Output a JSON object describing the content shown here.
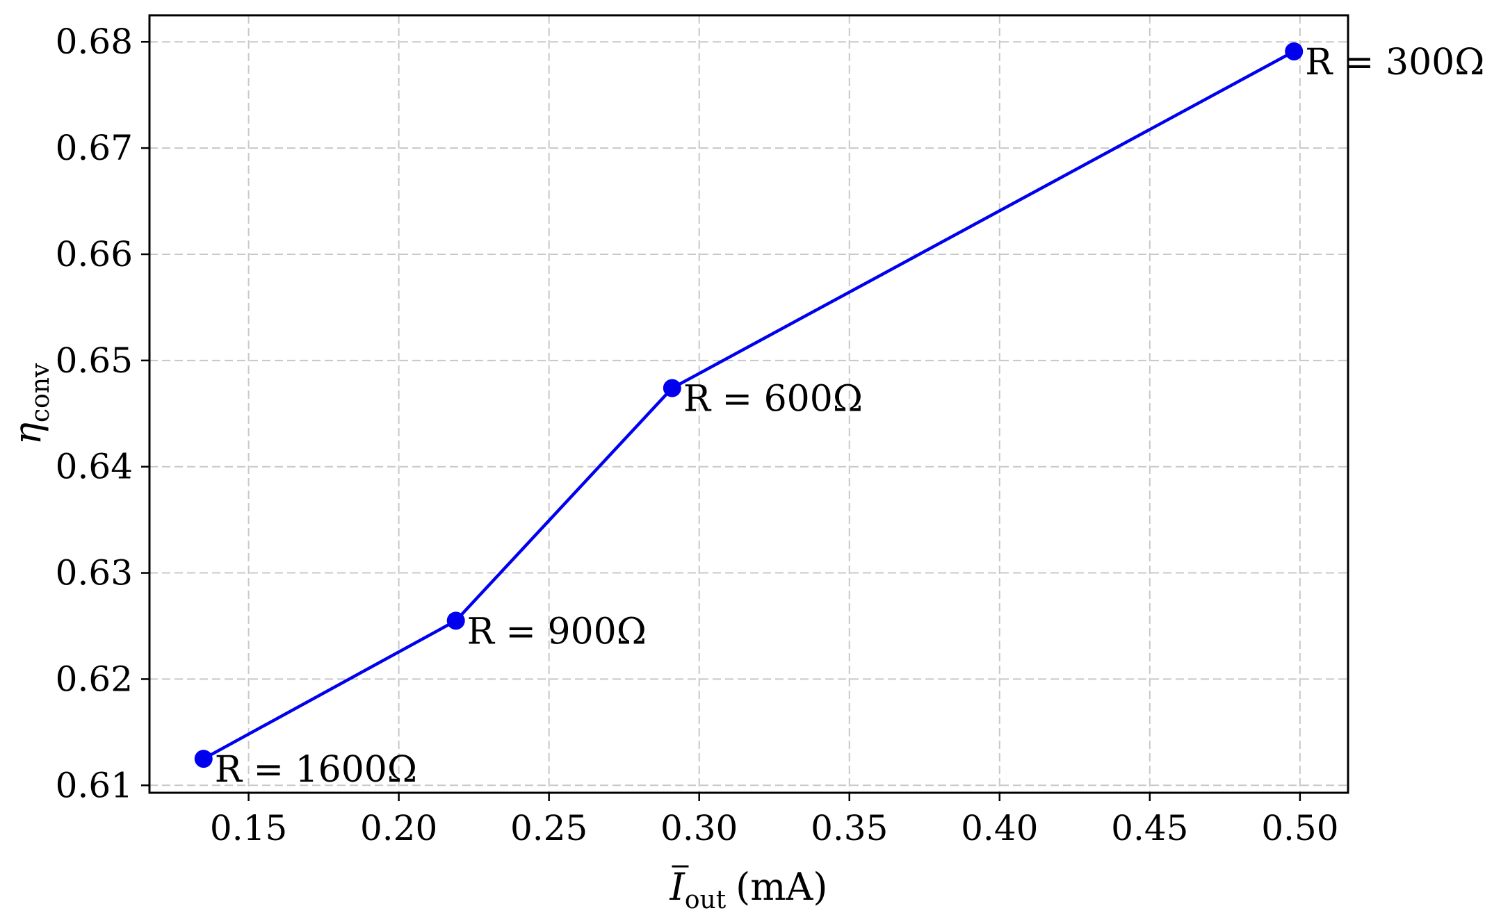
{
  "chart_data": {
    "type": "line",
    "title": "",
    "xlabel": {
      "symbol": "I",
      "subscript": "out",
      "unit": "(mA)"
    },
    "ylabel": {
      "symbol": "η",
      "subscript": "conv"
    },
    "xlim": [
      0.117,
      0.516
    ],
    "ylim": [
      0.6093,
      0.6825
    ],
    "x_ticks": [
      0.15,
      0.2,
      0.25,
      0.3,
      0.35,
      0.4,
      0.45,
      0.5
    ],
    "x_tick_labels": [
      "0.15",
      "0.20",
      "0.25",
      "0.30",
      "0.35",
      "0.40",
      "0.45",
      "0.50"
    ],
    "y_ticks": [
      0.61,
      0.62,
      0.63,
      0.64,
      0.65,
      0.66,
      0.67,
      0.68
    ],
    "y_tick_labels": [
      "0.61",
      "0.62",
      "0.63",
      "0.64",
      "0.65",
      "0.66",
      "0.67",
      "0.68"
    ],
    "grid": true,
    "series": [
      {
        "color": "#0000ee",
        "marker": "circle",
        "points": [
          {
            "x": 0.135,
            "y": 0.6125,
            "label": "R = 1600Ω"
          },
          {
            "x": 0.219,
            "y": 0.6255,
            "label": "R = 900Ω"
          },
          {
            "x": 0.291,
            "y": 0.6474,
            "label": "R = 600Ω"
          },
          {
            "x": 0.498,
            "y": 0.6791,
            "label": "R = 300Ω"
          }
        ]
      }
    ]
  }
}
